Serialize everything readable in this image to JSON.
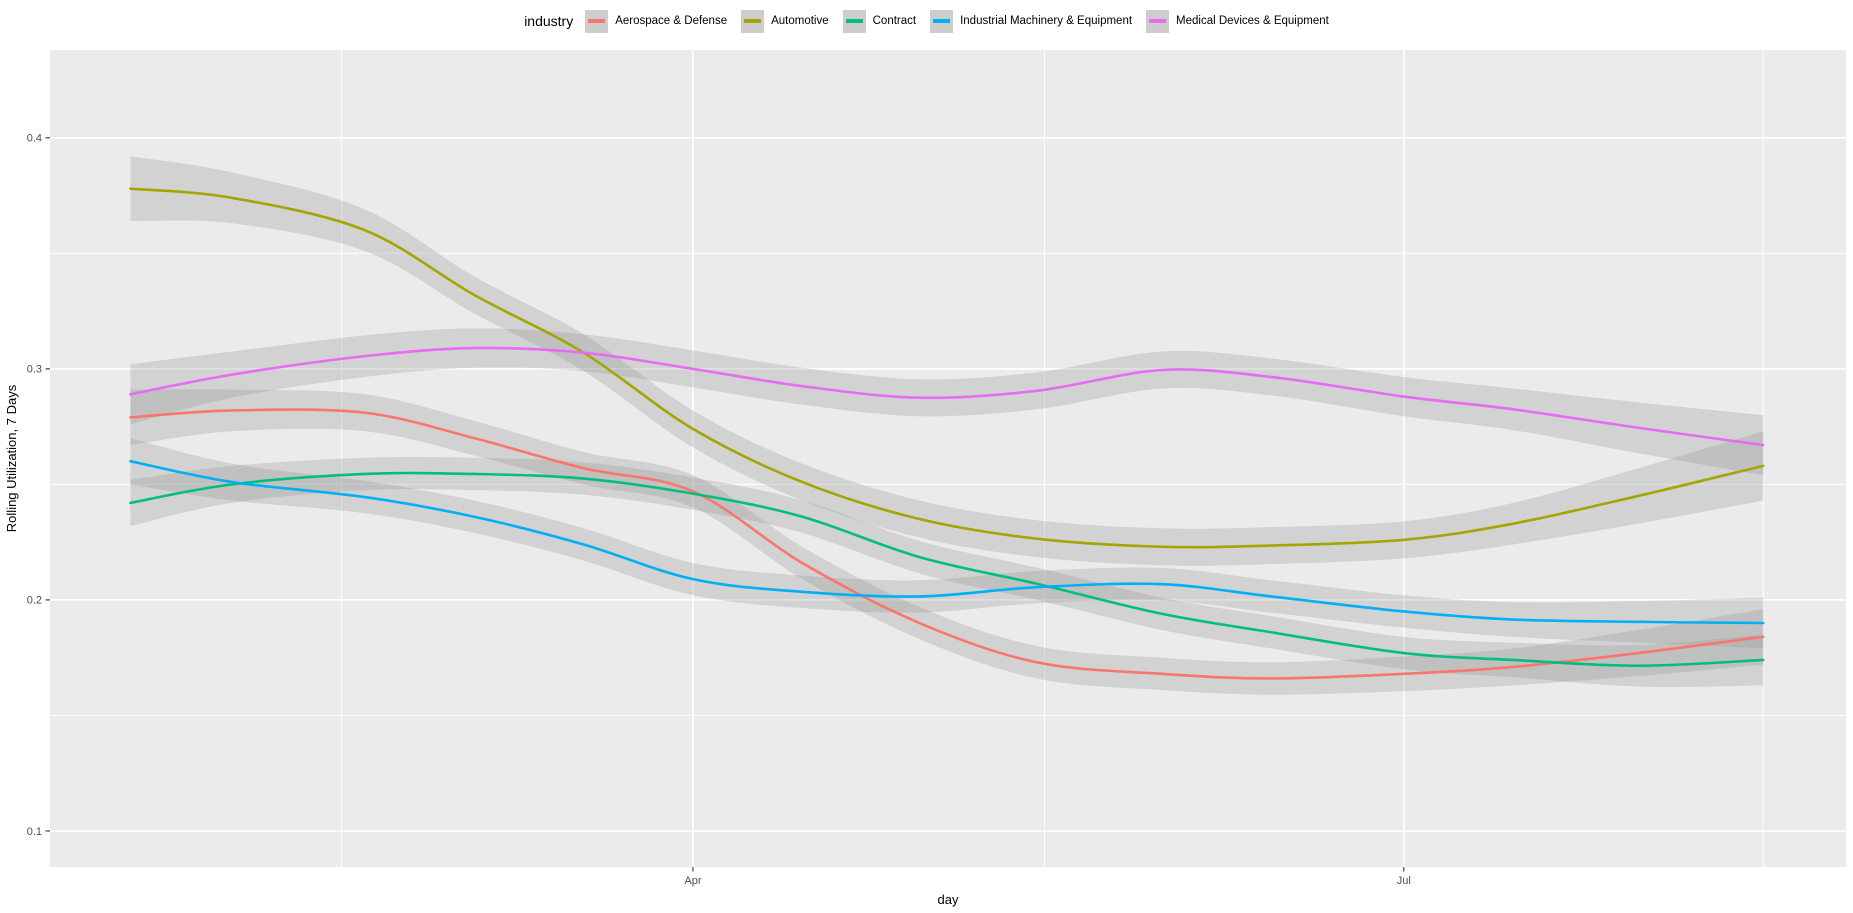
{
  "figure": {
    "kind": "ggplot-smoothed-line-chart",
    "background": "#ffffff",
    "panel_background": "#ebebeb",
    "gridline_color": "#ffffff",
    "band_color": "#999999",
    "band_opacity": 0.3,
    "tick_color": "#333333",
    "tick_label_color": "#4d4d4d"
  },
  "legend": {
    "title": "industry",
    "key_background": "#cdcdcd",
    "items": [
      {
        "label": "Aerospace & Defense",
        "color": "#F8766D"
      },
      {
        "label": "Automotive",
        "color": "#A3A500"
      },
      {
        "label": "Contract",
        "color": "#00BF7D"
      },
      {
        "label": "Industrial Machinery & Equipment",
        "color": "#00B0F6"
      },
      {
        "label": "Medical Devices & Equipment",
        "color": "#E76BF3"
      }
    ]
  },
  "chart_data": {
    "type": "line",
    "title": "",
    "xlabel": "day",
    "ylabel": "Rolling Utilization, 7 Days",
    "x_unit": "days since first observation (date axis, ticks at Apr and Jul)",
    "x": [
      0,
      13,
      30,
      44,
      58,
      72,
      86,
      101,
      116,
      132,
      146,
      163,
      177,
      193,
      209
    ],
    "x_axis": {
      "domain": [
        -10.3,
        219.6
      ],
      "major_ticks": [
        {
          "label": "Apr",
          "t": 72
        },
        {
          "label": "Jul",
          "t": 163
        }
      ],
      "minor_ticks": [
        27,
        117,
        209
      ]
    },
    "y_axis": {
      "domain": [
        0.0844,
        0.438
      ],
      "major_ticks": [
        {
          "label": "0.1",
          "v": 0.1
        },
        {
          "label": "0.2",
          "v": 0.2
        },
        {
          "label": "0.3",
          "v": 0.3
        },
        {
          "label": "0.4",
          "v": 0.4
        }
      ],
      "minor_ticks": [
        0.15,
        0.25,
        0.35
      ]
    },
    "grid": true,
    "legend_position": "top",
    "smoothing": "loess smoothed conditional means with gray confidence ribbons",
    "series": [
      {
        "name": "Aerospace & Defense",
        "color": "#F8766D",
        "values": [
          0.279,
          0.282,
          0.281,
          0.27,
          0.257,
          0.247,
          0.216,
          0.19,
          0.173,
          0.168,
          0.166,
          0.168,
          0.171,
          0.177,
          0.184
        ],
        "ci": [
          0.012,
          0.009,
          0.008,
          0.0075,
          0.007,
          0.007,
          0.007,
          0.007,
          0.007,
          0.007,
          0.007,
          0.0075,
          0.008,
          0.01,
          0.012
        ]
      },
      {
        "name": "Automotive",
        "color": "#A3A500",
        "values": [
          0.378,
          0.374,
          0.36,
          0.332,
          0.307,
          0.274,
          0.251,
          0.235,
          0.2265,
          0.223,
          0.2235,
          0.226,
          0.233,
          0.245,
          0.258
        ],
        "ci": [
          0.014,
          0.011,
          0.009,
          0.008,
          0.008,
          0.008,
          0.008,
          0.008,
          0.008,
          0.008,
          0.008,
          0.008,
          0.009,
          0.012,
          0.015
        ]
      },
      {
        "name": "Contract",
        "color": "#00BF7D",
        "values": [
          0.242,
          0.25,
          0.2545,
          0.2545,
          0.2525,
          0.246,
          0.236,
          0.2185,
          0.207,
          0.194,
          0.186,
          0.177,
          0.174,
          0.1715,
          0.174
        ],
        "ci": [
          0.01,
          0.008,
          0.007,
          0.007,
          0.007,
          0.007,
          0.007,
          0.007,
          0.007,
          0.007,
          0.007,
          0.007,
          0.0075,
          0.009,
          0.011
        ]
      },
      {
        "name": "Industrial Machinery & Equipment",
        "color": "#00B0F6",
        "values": [
          0.26,
          0.251,
          0.2445,
          0.236,
          0.224,
          0.209,
          0.2035,
          0.2015,
          0.2055,
          0.2068,
          0.2015,
          0.195,
          0.1915,
          0.1905,
          0.19
        ],
        "ci": [
          0.01,
          0.008,
          0.007,
          0.007,
          0.007,
          0.007,
          0.007,
          0.007,
          0.007,
          0.007,
          0.007,
          0.007,
          0.0075,
          0.009,
          0.011
        ]
      },
      {
        "name": "Medical Devices & Equipment",
        "color": "#E76BF3",
        "values": [
          0.289,
          0.2975,
          0.3055,
          0.309,
          0.307,
          0.3,
          0.2925,
          0.2875,
          0.2905,
          0.2995,
          0.2965,
          0.288,
          0.2825,
          0.2745,
          0.267
        ],
        "ci": [
          0.013,
          0.01,
          0.009,
          0.0085,
          0.008,
          0.008,
          0.008,
          0.008,
          0.008,
          0.008,
          0.008,
          0.0085,
          0.009,
          0.011,
          0.013
        ]
      }
    ]
  }
}
